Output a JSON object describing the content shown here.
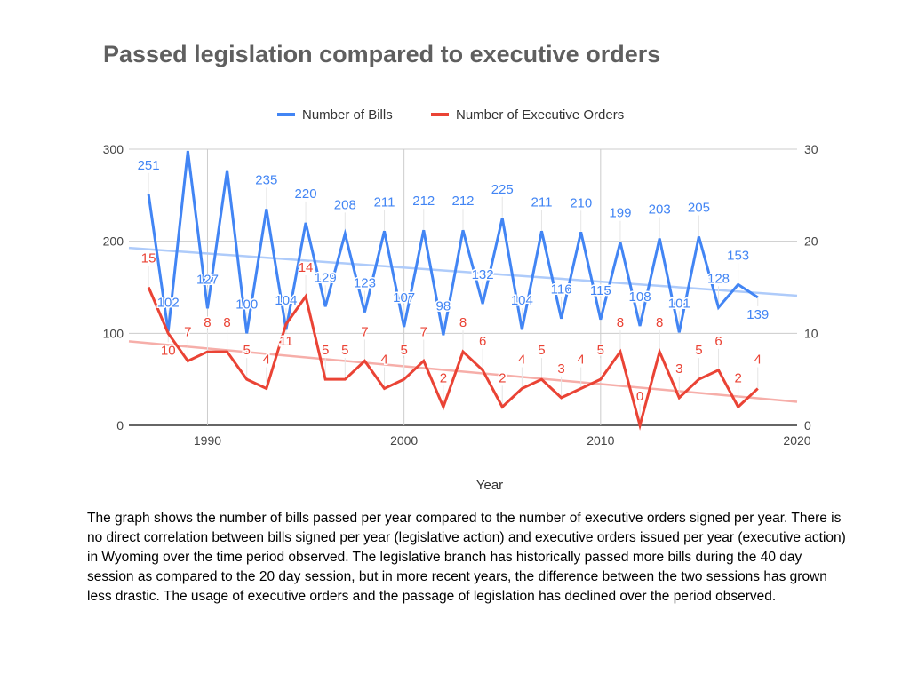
{
  "chart_data": {
    "type": "line",
    "title": "Passed legislation compared to executive orders",
    "xlabel": "Year",
    "x": [
      1987,
      1988,
      1989,
      1990,
      1991,
      1992,
      1993,
      1994,
      1995,
      1996,
      1997,
      1998,
      1999,
      2000,
      2001,
      2002,
      2003,
      2004,
      2005,
      2006,
      2007,
      2008,
      2009,
      2010,
      2011,
      2012,
      2013,
      2014,
      2015,
      2016,
      2017,
      2018
    ],
    "xlim": [
      1986,
      2020
    ],
    "xticks": [
      "1990",
      "2000",
      "2010",
      "2020"
    ],
    "ylim_left": [
      0,
      300
    ],
    "yticks_left": [
      "0",
      "100",
      "200",
      "300"
    ],
    "ylim_right": [
      0,
      30
    ],
    "yticks_right": [
      "0",
      "10",
      "20",
      "30"
    ],
    "legend_position": "top",
    "grid": true,
    "trendlines": true,
    "series": [
      {
        "name": "Number of Bills",
        "axis": "left",
        "color": "#4285f4",
        "trend_color": "#aecbfa",
        "values": [
          251,
          102,
          298,
          127,
          277,
          100,
          235,
          104,
          220,
          129,
          208,
          123,
          211,
          107,
          212,
          98,
          212,
          132,
          225,
          104,
          211,
          116,
          210,
          115,
          199,
          108,
          203,
          101,
          205,
          128,
          153,
          139
        ],
        "labels": [
          "251",
          "102",
          null,
          "127",
          null,
          "100",
          "235",
          "104",
          "220",
          "129",
          "208",
          "123",
          "211",
          "107",
          "212",
          "98",
          "212",
          "132",
          "225",
          "104",
          "211",
          "116",
          "210",
          "115",
          "199",
          "108",
          "203",
          "101",
          "205",
          "128",
          "153",
          "139"
        ]
      },
      {
        "name": "Number of Executive Orders",
        "axis": "right",
        "color": "#ea4335",
        "trend_color": "#f6aea9",
        "values": [
          15,
          10,
          7,
          8,
          8,
          5,
          4,
          11,
          14,
          5,
          5,
          7,
          4,
          5,
          7,
          2,
          8,
          6,
          2,
          4,
          5,
          3,
          4,
          5,
          8,
          0,
          8,
          3,
          5,
          6,
          2,
          4
        ],
        "labels": [
          "15",
          "10",
          "7",
          "8",
          "8",
          "5",
          "4",
          "11",
          "14",
          "5",
          "5",
          "7",
          "4",
          "5",
          "7",
          "2",
          "8",
          "6",
          "2",
          "4",
          "5",
          "3",
          "4",
          "5",
          "8",
          "0",
          "8",
          "3",
          "5",
          "6",
          "2",
          "4"
        ]
      }
    ]
  },
  "caption": "The graph shows the number of bills passed per year compared to the number of executive orders signed per year. There is no direct correlation between bills signed per year (legislative action) and executive orders issued per year (executive action) in Wyoming over the time period observed. The legislative branch has historically passed more bills during the 40 day session as compared to the 20 day session, but in more recent years, the difference between the two sessions has grown less drastic. The usage of executive orders and the passage of legislation has declined over the period observed."
}
